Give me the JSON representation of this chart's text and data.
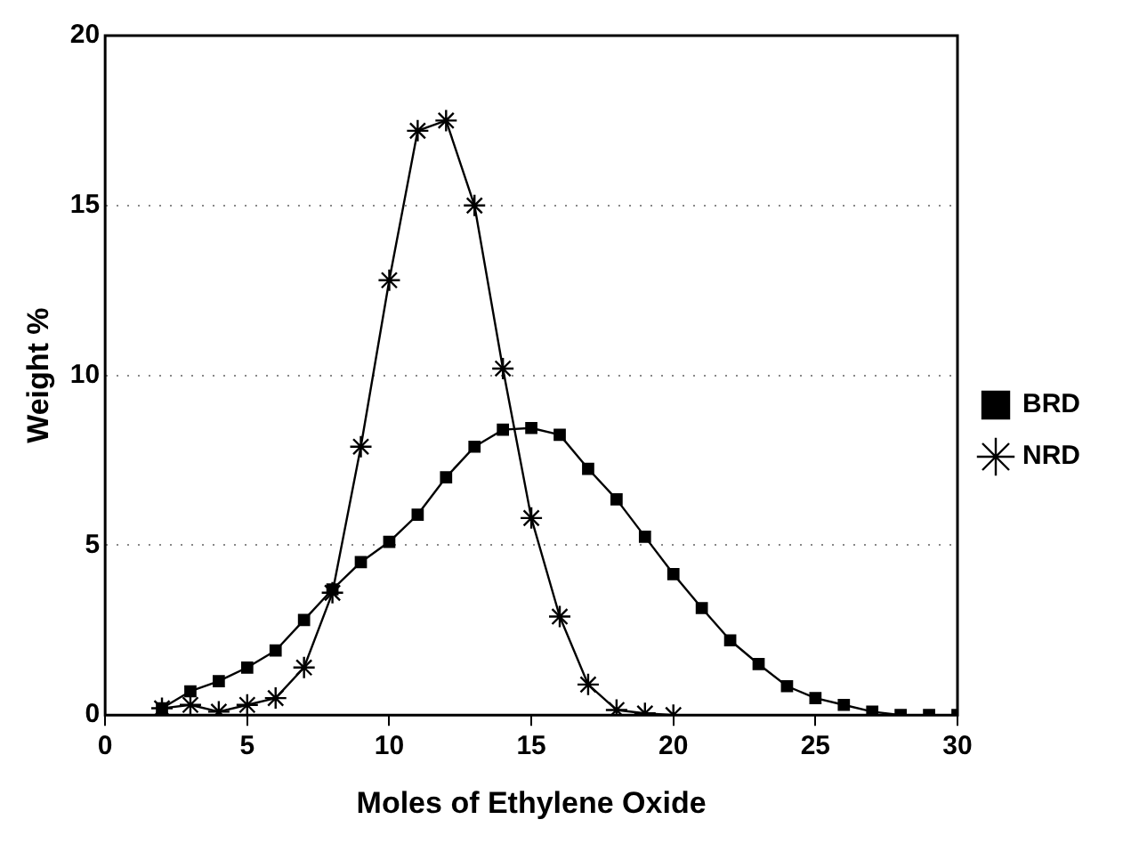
{
  "chart_data": {
    "type": "line",
    "xlabel": "Moles of Ethylene Oxide",
    "ylabel": "Weight %",
    "xlim": [
      0,
      30
    ],
    "xticks": [
      0,
      5,
      10,
      15,
      20,
      25,
      30
    ],
    "ylim": [
      0,
      20
    ],
    "yticks": [
      0,
      5,
      10,
      15,
      20
    ],
    "grid": "y",
    "legend": "right",
    "line_style": "solid",
    "series": [
      {
        "name": "BRD",
        "color": "#000000",
        "marker": "square",
        "x": [
          2,
          3,
          4,
          5,
          6,
          7,
          8,
          9,
          10,
          11,
          12,
          13,
          14,
          15,
          16,
          17,
          18,
          19,
          20,
          21,
          22,
          23,
          24,
          25,
          26,
          27,
          28,
          29,
          30
        ],
        "values": [
          0.2,
          0.7,
          1.0,
          1.4,
          1.9,
          2.8,
          3.7,
          4.5,
          5.1,
          5.9,
          7.0,
          7.9,
          8.4,
          8.45,
          8.25,
          7.25,
          6.35,
          5.25,
          4.15,
          3.15,
          2.2,
          1.5,
          0.85,
          0.5,
          0.3,
          0.1,
          0,
          0,
          0
        ]
      },
      {
        "name": "NRD",
        "color": "#000000",
        "marker": "cross",
        "x": [
          2,
          3,
          4,
          5,
          6,
          7,
          8,
          9,
          10,
          11,
          12,
          13,
          14,
          15,
          16,
          17,
          18,
          19,
          20
        ],
        "values": [
          0.2,
          0.3,
          0.1,
          0.3,
          0.5,
          1.4,
          3.6,
          7.9,
          12.8,
          17.2,
          17.5,
          15.0,
          10.2,
          5.8,
          2.9,
          0.9,
          0.15,
          0.05,
          0
        ]
      }
    ]
  }
}
